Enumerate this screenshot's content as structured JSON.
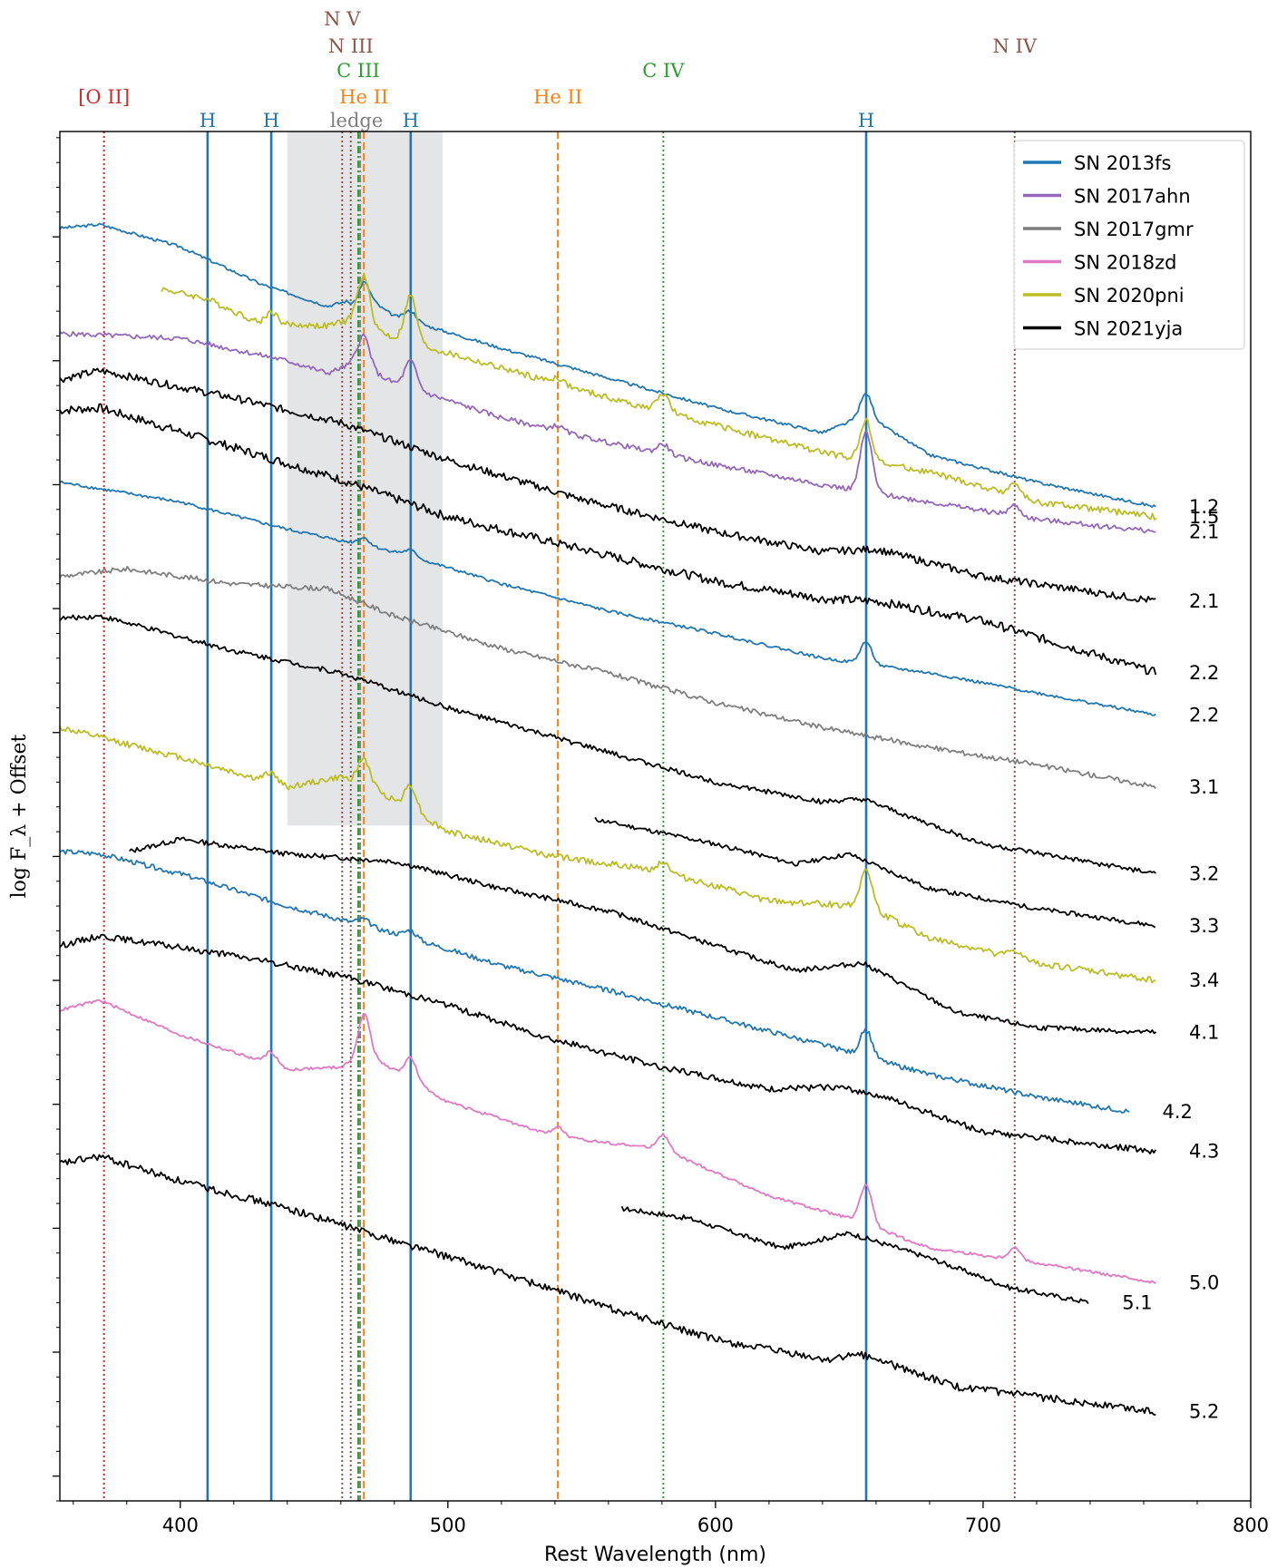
{
  "chart_data": {
    "type": "line",
    "title": "",
    "xlabel": "Rest Wavelength (nm)",
    "ylabel": "log F_λ + Offset",
    "xlim": [
      355,
      800
    ],
    "ylim": [
      -9.2,
      1.85
    ],
    "x_ticks": [
      400,
      500,
      600,
      700,
      800
    ],
    "shaded_band": [
      440,
      498
    ],
    "legend": {
      "placement": "top-right",
      "entries": [
        {
          "label": "SN 2013fs",
          "color": "#1f77b4"
        },
        {
          "label": "SN 2017ahn",
          "color": "#9467bd"
        },
        {
          "label": "SN 2017gmr",
          "color": "#7f7f7f"
        },
        {
          "label": "SN 2018zd",
          "color": "#e377c2"
        },
        {
          "label": "SN 2020pni",
          "color": "#bcbd22"
        },
        {
          "label": "SN 2021yja",
          "color": "#000000"
        }
      ]
    },
    "line_ids": [
      {
        "label": "[O II]",
        "x": 371.5,
        "color": "#d62728",
        "style": "dotted",
        "row": 4
      },
      {
        "label": "H",
        "x": 410.2,
        "color": "#1f77b4",
        "style": "solid",
        "row": 5
      },
      {
        "label": "H",
        "x": 434.0,
        "color": "#1f77b4",
        "style": "solid",
        "row": 5
      },
      {
        "label": "N V",
        "x": 460.5,
        "color": "#8c564b",
        "style": "dotted",
        "row": 0
      },
      {
        "label": "N III",
        "x": 463.7,
        "color": "#8c564b",
        "style": "dotted",
        "row": 1
      },
      {
        "label": "C III",
        "x": 466.5,
        "color": "#2ca02c",
        "style": "dashdot",
        "row": 2
      },
      {
        "label": "ledge",
        "x": 467.2,
        "color": "#7f7f7f",
        "style": "dashdot",
        "row": 5
      },
      {
        "label": "He II",
        "x": 468.6,
        "color": "#ff7f0e",
        "style": "dashed",
        "row": 3
      },
      {
        "label": "H",
        "x": 486.1,
        "color": "#1f77b4",
        "style": "solid",
        "row": 5
      },
      {
        "label": "He II",
        "x": 541.1,
        "color": "#ff7f0e",
        "style": "dashed",
        "row": 3
      },
      {
        "label": "C IV",
        "x": 580.5,
        "color": "#2ca02c",
        "style": "dotted",
        "row": 2
      },
      {
        "label": "H",
        "x": 656.3,
        "color": "#1f77b4",
        "style": "solid",
        "row": 5
      },
      {
        "label": "N IV",
        "x": 711.8,
        "color": "#8c564b",
        "style": "dotted",
        "row": 1
      }
    ],
    "series": [
      {
        "name": "SN 2013fs",
        "color": "#1f77b4",
        "x_range": [
          355,
          765
        ],
        "label": "1.2",
        "points": [
          [
            355,
            1.07
          ],
          [
            370,
            1.1
          ],
          [
            400,
            0.92
          ],
          [
            430,
            0.62
          ],
          [
            455,
            0.44
          ],
          [
            462,
            0.48
          ],
          [
            465,
            0.44
          ],
          [
            468.6,
            0.52
          ],
          [
            480,
            0.36
          ],
          [
            520,
            0.1
          ],
          [
            560,
            -0.14
          ],
          [
            600,
            -0.38
          ],
          [
            640,
            -0.58
          ],
          [
            656.3,
            -0.44
          ],
          [
            680,
            -0.76
          ],
          [
            720,
            -0.98
          ],
          [
            765,
            -1.18
          ]
        ],
        "lines": [
          [
            468.6,
            0.12
          ],
          [
            486.1,
            0.08
          ],
          [
            656.3,
            0.18
          ]
        ],
        "noise": 0.012
      },
      {
        "name": "SN 2020pni",
        "color": "#bcbd22",
        "x_range": [
          393,
          765
        ],
        "label": "1.5",
        "points": [
          [
            393,
            0.58
          ],
          [
            410,
            0.5
          ],
          [
            430,
            0.3
          ],
          [
            455,
            0.28
          ],
          [
            465,
            0.34
          ],
          [
            480,
            0.18
          ],
          [
            520,
            -0.06
          ],
          [
            560,
            -0.3
          ],
          [
            600,
            -0.52
          ],
          [
            640,
            -0.74
          ],
          [
            680,
            -0.9
          ],
          [
            720,
            -1.14
          ],
          [
            765,
            -1.26
          ]
        ],
        "lines": [
          [
            434,
            0.1
          ],
          [
            468.6,
            0.38
          ],
          [
            486.1,
            0.38
          ],
          [
            541.1,
            0.05
          ],
          [
            580.5,
            0.15
          ],
          [
            656.3,
            0.32
          ],
          [
            711.8,
            0.1
          ]
        ],
        "noise": 0.025
      },
      {
        "name": "SN 2017ahn",
        "color": "#9467bd",
        "x_range": [
          355,
          765
        ],
        "label": "2.1",
        "points": [
          [
            355,
            0.22
          ],
          [
            400,
            0.18
          ],
          [
            440,
            0.0
          ],
          [
            455,
            -0.1
          ],
          [
            465,
            -0.02
          ],
          [
            480,
            -0.18
          ],
          [
            520,
            -0.46
          ],
          [
            560,
            -0.66
          ],
          [
            600,
            -0.84
          ],
          [
            640,
            -1.0
          ],
          [
            680,
            -1.14
          ],
          [
            720,
            -1.28
          ],
          [
            765,
            -1.38
          ]
        ],
        "lines": [
          [
            468.6,
            0.26
          ],
          [
            486.1,
            0.22
          ],
          [
            541.1,
            0.04
          ],
          [
            580.5,
            0.08
          ],
          [
            656.3,
            0.48
          ],
          [
            711.8,
            0.08
          ]
        ],
        "noise": 0.02
      },
      {
        "name": "SN 2021yja",
        "color": "#000000",
        "x_range": [
          355,
          765
        ],
        "label": "2.1",
        "points": [
          [
            355,
            -0.15
          ],
          [
            370,
            -0.08
          ],
          [
            420,
            -0.3
          ],
          [
            460,
            -0.5
          ],
          [
            500,
            -0.8
          ],
          [
            550,
            -1.12
          ],
          [
            600,
            -1.38
          ],
          [
            640,
            -1.54
          ],
          [
            660,
            -1.52
          ],
          [
            700,
            -1.74
          ],
          [
            765,
            -1.94
          ]
        ],
        "lines": [],
        "noise": 0.03
      },
      {
        "name": "SN 2021yja",
        "color": "#000000",
        "x_range": [
          355,
          765
        ],
        "label": "2.2",
        "points": [
          [
            355,
            -0.4
          ],
          [
            370,
            -0.38
          ],
          [
            420,
            -0.7
          ],
          [
            460,
            -0.96
          ],
          [
            500,
            -1.26
          ],
          [
            550,
            -1.52
          ],
          [
            600,
            -1.78
          ],
          [
            640,
            -1.92
          ],
          [
            660,
            -1.94
          ],
          [
            700,
            -2.1
          ],
          [
            765,
            -2.52
          ]
        ],
        "lines": [],
        "noise": 0.035
      },
      {
        "name": "SN 2013fs",
        "color": "#1f77b4",
        "x_range": [
          355,
          765
        ],
        "label": "2.2",
        "points": [
          [
            355,
            -0.98
          ],
          [
            400,
            -1.14
          ],
          [
            440,
            -1.36
          ],
          [
            480,
            -1.54
          ],
          [
            520,
            -1.8
          ],
          [
            560,
            -2.02
          ],
          [
            600,
            -2.2
          ],
          [
            640,
            -2.4
          ],
          [
            680,
            -2.52
          ],
          [
            720,
            -2.68
          ],
          [
            765,
            -2.86
          ]
        ],
        "lines": [
          [
            468.6,
            0.06
          ],
          [
            486.1,
            0.05
          ],
          [
            656.3,
            0.18
          ]
        ],
        "noise": 0.012
      },
      {
        "name": "SN 2017gmr",
        "color": "#7f7f7f",
        "x_range": [
          355,
          765
        ],
        "label": "3.1",
        "points": [
          [
            355,
            -1.74
          ],
          [
            380,
            -1.68
          ],
          [
            420,
            -1.8
          ],
          [
            455,
            -1.84
          ],
          [
            480,
            -2.06
          ],
          [
            520,
            -2.32
          ],
          [
            560,
            -2.52
          ],
          [
            600,
            -2.76
          ],
          [
            640,
            -2.96
          ],
          [
            680,
            -3.12
          ],
          [
            720,
            -3.26
          ],
          [
            765,
            -3.44
          ]
        ],
        "lines": [],
        "noise": 0.02
      },
      {
        "name": "SN 2021yja",
        "color": "#000000",
        "x_range": [
          355,
          765
        ],
        "label": "3.2",
        "points": [
          [
            355,
            -2.08
          ],
          [
            370,
            -2.06
          ],
          [
            420,
            -2.34
          ],
          [
            460,
            -2.52
          ],
          [
            500,
            -2.8
          ],
          [
            550,
            -3.1
          ],
          [
            600,
            -3.4
          ],
          [
            640,
            -3.56
          ],
          [
            655,
            -3.54
          ],
          [
            700,
            -3.9
          ],
          [
            765,
            -4.14
          ]
        ],
        "lines": [],
        "noise": 0.02
      },
      {
        "name": "SN 2021yja",
        "color": "#000000",
        "x_range": [
          555,
          765
        ],
        "label": "3.3",
        "points": [
          [
            555,
            -3.7
          ],
          [
            600,
            -3.9
          ],
          [
            630,
            -4.06
          ],
          [
            650,
            -3.98
          ],
          [
            680,
            -4.26
          ],
          [
            720,
            -4.42
          ],
          [
            765,
            -4.56
          ]
        ],
        "lines": [],
        "noise": 0.018
      },
      {
        "name": "SN 2020pni",
        "color": "#bcbd22",
        "x_range": [
          355,
          765
        ],
        "label": "3.4",
        "points": [
          [
            355,
            -2.96
          ],
          [
            400,
            -3.2
          ],
          [
            440,
            -3.44
          ],
          [
            460,
            -3.36
          ],
          [
            470,
            -3.42
          ],
          [
            500,
            -3.8
          ],
          [
            540,
            -4.0
          ],
          [
            580,
            -4.12
          ],
          [
            620,
            -4.36
          ],
          [
            656,
            -4.4
          ],
          [
            680,
            -4.66
          ],
          [
            720,
            -4.86
          ],
          [
            765,
            -5.0
          ]
        ],
        "lines": [
          [
            434,
            0.08
          ],
          [
            468.6,
            0.2
          ],
          [
            486.1,
            0.2
          ],
          [
            580.5,
            0.08
          ],
          [
            656.3,
            0.3
          ],
          [
            711.8,
            0.06
          ]
        ],
        "noise": 0.025
      },
      {
        "name": "SN 2021yja",
        "color": "#000000",
        "x_range": [
          381,
          765
        ],
        "label": "4.1",
        "points": [
          [
            381,
            -3.96
          ],
          [
            400,
            -3.86
          ],
          [
            440,
            -3.98
          ],
          [
            480,
            -4.04
          ],
          [
            520,
            -4.26
          ],
          [
            560,
            -4.44
          ],
          [
            600,
            -4.72
          ],
          [
            630,
            -4.92
          ],
          [
            655,
            -4.86
          ],
          [
            690,
            -5.26
          ],
          [
            720,
            -5.38
          ],
          [
            765,
            -5.42
          ]
        ],
        "lines": [],
        "noise": 0.02
      },
      {
        "name": "SN 2013fs",
        "color": "#1f77b4",
        "x_range": [
          355,
          755
        ],
        "label": "4.2",
        "points": [
          [
            355,
            -3.96
          ],
          [
            370,
            -3.98
          ],
          [
            400,
            -4.14
          ],
          [
            440,
            -4.4
          ],
          [
            480,
            -4.62
          ],
          [
            520,
            -4.88
          ],
          [
            560,
            -5.08
          ],
          [
            600,
            -5.3
          ],
          [
            640,
            -5.52
          ],
          [
            680,
            -5.76
          ],
          [
            720,
            -5.94
          ],
          [
            755,
            -6.06
          ]
        ],
        "lines": [
          [
            468.6,
            0.05
          ],
          [
            486.1,
            0.06
          ],
          [
            656.3,
            0.22
          ]
        ],
        "noise": 0.02
      },
      {
        "name": "SN 2021yja",
        "color": "#000000",
        "x_range": [
          355,
          765
        ],
        "label": "4.3",
        "points": [
          [
            355,
            -4.72
          ],
          [
            370,
            -4.64
          ],
          [
            420,
            -4.8
          ],
          [
            460,
            -4.96
          ],
          [
            500,
            -5.2
          ],
          [
            540,
            -5.48
          ],
          [
            580,
            -5.7
          ],
          [
            620,
            -5.88
          ],
          [
            645,
            -5.86
          ],
          [
            660,
            -5.92
          ],
          [
            700,
            -6.22
          ],
          [
            765,
            -6.38
          ]
        ],
        "lines": [],
        "noise": 0.025
      },
      {
        "name": "SN 2018zd",
        "color": "#e377c2",
        "x_range": [
          355,
          765
        ],
        "label": "5.0",
        "points": [
          [
            355,
            -5.24
          ],
          [
            370,
            -5.16
          ],
          [
            400,
            -5.44
          ],
          [
            440,
            -5.72
          ],
          [
            460,
            -5.7
          ],
          [
            470,
            -5.6
          ],
          [
            500,
            -5.98
          ],
          [
            540,
            -6.26
          ],
          [
            580,
            -6.36
          ],
          [
            620,
            -6.74
          ],
          [
            650,
            -6.92
          ],
          [
            680,
            -7.16
          ],
          [
            720,
            -7.28
          ],
          [
            765,
            -7.44
          ]
        ],
        "lines": [
          [
            434,
            0.1
          ],
          [
            468.6,
            0.34
          ],
          [
            486.1,
            0.18
          ],
          [
            541.1,
            0.08
          ],
          [
            580.5,
            0.12
          ],
          [
            656.3,
            0.32
          ],
          [
            711.8,
            0.1
          ]
        ],
        "noise": 0.012
      },
      {
        "name": "SN 2021yja",
        "color": "#000000",
        "x_range": [
          565,
          740
        ],
        "label": "5.1",
        "points": [
          [
            565,
            -6.84
          ],
          [
            590,
            -6.92
          ],
          [
            625,
            -7.16
          ],
          [
            650,
            -7.04
          ],
          [
            680,
            -7.24
          ],
          [
            710,
            -7.48
          ],
          [
            740,
            -7.6
          ]
        ],
        "lines": [],
        "noise": 0.02
      },
      {
        "name": "SN 2021yja",
        "color": "#000000",
        "x_range": [
          355,
          765
        ],
        "label": "5.2",
        "points": [
          [
            355,
            -6.48
          ],
          [
            370,
            -6.42
          ],
          [
            400,
            -6.62
          ],
          [
            440,
            -6.84
          ],
          [
            480,
            -7.1
          ],
          [
            520,
            -7.36
          ],
          [
            560,
            -7.64
          ],
          [
            600,
            -7.9
          ],
          [
            640,
            -8.06
          ],
          [
            655,
            -8.02
          ],
          [
            690,
            -8.28
          ],
          [
            765,
            -8.48
          ]
        ],
        "lines": [],
        "noise": 0.03
      }
    ]
  }
}
